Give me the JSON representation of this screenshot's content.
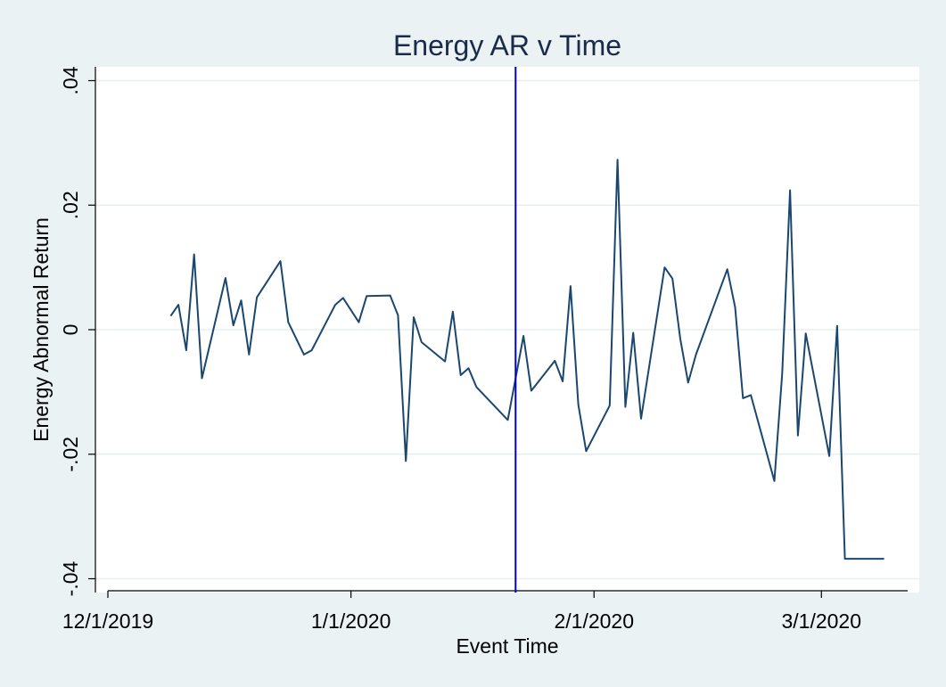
{
  "chart_data": {
    "type": "line",
    "title": "Energy AR v Time",
    "xlabel": "Event Time",
    "ylabel": "Energy Abnormal Return",
    "x_ticks": [
      "12/1/2019",
      "1/1/2020",
      "2/1/2020",
      "3/1/2020"
    ],
    "y_ticks": [
      ".04",
      ".02",
      "0",
      "-.02",
      "-.04"
    ],
    "y_tick_values": [
      0.04,
      0.02,
      0,
      -0.02,
      -0.04
    ],
    "xlim": [
      "2019-12-01",
      "2020-03-12"
    ],
    "ylim": [
      -0.042,
      0.042
    ],
    "grid": true,
    "event_line_date": "2020-01-22",
    "colors": {
      "background": "#eaf2f3",
      "plot_area": "#ffffff",
      "series": "#1a476f",
      "event_line": "#0000cc",
      "grid": "#e8efef"
    },
    "series": [
      {
        "x": [
          "2019-12-09",
          "2019-12-10",
          "2019-12-11",
          "2019-12-12",
          "2019-12-13",
          "2019-12-16",
          "2019-12-17",
          "2019-12-18",
          "2019-12-19",
          "2019-12-20",
          "2019-12-23",
          "2019-12-24",
          "2019-12-26",
          "2019-12-27",
          "2019-12-30",
          "2019-12-31",
          "2020-01-02",
          "2020-01-03",
          "2020-01-06",
          "2020-01-07",
          "2020-01-08",
          "2020-01-09",
          "2020-01-10",
          "2020-01-13",
          "2020-01-14",
          "2020-01-15",
          "2020-01-16",
          "2020-01-17",
          "2020-01-21",
          "2020-01-22",
          "2020-01-23",
          "2020-01-24",
          "2020-01-27",
          "2020-01-28",
          "2020-01-29",
          "2020-01-30",
          "2020-01-31",
          "2020-02-03",
          "2020-02-04",
          "2020-02-05",
          "2020-02-06",
          "2020-02-07",
          "2020-02-10",
          "2020-02-11",
          "2020-02-12",
          "2020-02-13",
          "2020-02-14",
          "2020-02-18",
          "2020-02-19",
          "2020-02-20",
          "2020-02-21",
          "2020-02-24",
          "2020-02-25",
          "2020-02-26",
          "2020-02-27",
          "2020-02-28",
          "2020-03-02",
          "2020-03-03",
          "2020-03-04",
          "2020-03-05",
          "2020-03-06",
          "2020-03-09"
        ],
        "values": [
          0.0022,
          0.004,
          -0.0033,
          0.0121,
          -0.0078,
          0.0083,
          0.0007,
          0.0047,
          -0.004,
          0.0052,
          0.011,
          0.0012,
          -0.004,
          -0.0033,
          0.004,
          0.0051,
          0.0012,
          0.0054,
          0.0055,
          0.0023,
          -0.0211,
          0.002,
          -0.002,
          -0.0051,
          0.0029,
          -0.0073,
          -0.0062,
          -0.0092,
          -0.0145,
          -0.0078,
          -0.001,
          -0.0098,
          -0.005,
          -0.0083,
          0.007,
          -0.012,
          -0.0195,
          -0.0122,
          0.0273,
          -0.0124,
          -0.0005,
          -0.0143,
          0.01,
          0.0082,
          -0.0015,
          -0.0085,
          -0.004,
          0.0097,
          0.0036,
          -0.011,
          -0.0105,
          -0.0243,
          -0.007,
          0.0224,
          -0.017,
          -0.0006,
          -0.0203,
          0.0006,
          -0.0368,
          -0.0368,
          -0.0368,
          -0.0368
        ]
      }
    ]
  }
}
